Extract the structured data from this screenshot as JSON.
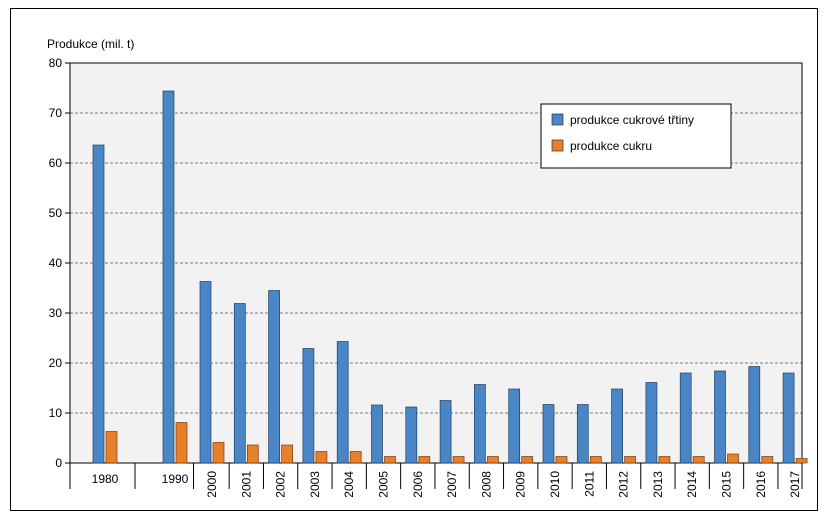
{
  "chart_data": {
    "type": "bar",
    "title": "",
    "ylabel": "Produkce (mil. t)",
    "xlabel": "",
    "ylim": [
      0,
      80
    ],
    "yticks": [
      0,
      10,
      20,
      30,
      40,
      50,
      60,
      70,
      80
    ],
    "grid": true,
    "legend_position": "top-right",
    "categories": [
      "1980",
      "1990",
      "2000",
      "2001",
      "2002",
      "2003",
      "2004",
      "2005",
      "2006",
      "2007",
      "2008",
      "2009",
      "2010",
      "2011",
      "2012",
      "2013",
      "2014",
      "2015",
      "2016",
      "2017"
    ],
    "series": [
      {
        "name": "produkce cukrové třtiny",
        "color": "#4a86c5",
        "values": [
          63.6,
          74.4,
          36.3,
          31.9,
          34.5,
          22.9,
          24.3,
          11.6,
          11.2,
          12.5,
          15.7,
          14.8,
          11.7,
          11.7,
          14.8,
          16.1,
          18.0,
          18.4,
          19.3,
          18.0
        ]
      },
      {
        "name": "produkce cukru",
        "color": "#e8802a",
        "values": [
          6.3,
          8.1,
          4.1,
          3.6,
          3.6,
          2.3,
          2.3,
          1.3,
          1.3,
          1.3,
          1.3,
          1.3,
          1.3,
          1.3,
          1.3,
          1.3,
          1.3,
          1.8,
          1.3,
          0.9
        ]
      }
    ]
  }
}
